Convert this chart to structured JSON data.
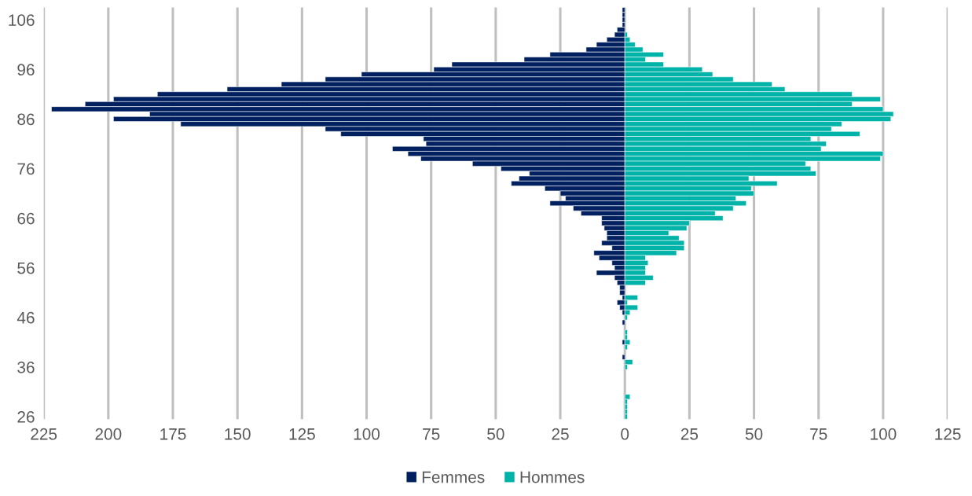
{
  "chart_data": {
    "type": "bar",
    "orientation": "horizontal",
    "categories": [
      null,
      null,
      "106",
      null,
      null,
      null,
      null,
      null,
      null,
      null,
      null,
      null,
      "96",
      null,
      null,
      null,
      null,
      null,
      null,
      null,
      null,
      null,
      "86",
      null,
      null,
      null,
      null,
      null,
      null,
      null,
      null,
      null,
      "76",
      null,
      null,
      null,
      null,
      null,
      null,
      null,
      null,
      null,
      "66",
      null,
      null,
      null,
      null,
      null,
      null,
      null,
      null,
      null,
      "56",
      null,
      null,
      null,
      null,
      null,
      null,
      null,
      null,
      null,
      "46",
      null,
      null,
      null,
      null,
      null,
      null,
      null,
      null,
      null,
      "36",
      null,
      null,
      null,
      null,
      null,
      null,
      null,
      null,
      null,
      "26"
    ],
    "series": [
      {
        "name": "Femmes",
        "color": "#002060",
        "values": [
          -1,
          -1,
          -1,
          -1,
          -3,
          -4,
          -7,
          -11,
          -15,
          -29,
          -39,
          -67,
          -74,
          -102,
          -116,
          -133,
          -154,
          -181,
          -198,
          -209,
          -222,
          -184,
          -198,
          -172,
          -116,
          -110,
          -78,
          -77,
          -90,
          -84,
          -79,
          -59,
          -48,
          -37,
          -41,
          -44,
          -31,
          -25,
          -23,
          -29,
          -20,
          -17,
          -9,
          -9,
          -8,
          -7,
          -7,
          -9,
          -5,
          -12,
          -10,
          -5,
          -4,
          -11,
          -4,
          -3,
          -2,
          -2,
          -1,
          -3,
          -2,
          -1,
          0,
          -1,
          0,
          0,
          0,
          -1,
          0,
          0,
          -1,
          0,
          0,
          0,
          0,
          0,
          0,
          0,
          0,
          0,
          0,
          0,
          0
        ]
      },
      {
        "name": "Hommes",
        "color": "#00b3a8",
        "values": [
          0,
          0,
          0,
          0,
          0,
          1,
          2,
          4,
          7,
          15,
          8,
          15,
          30,
          34,
          42,
          57,
          62,
          88,
          99,
          88,
          100,
          104,
          103,
          84,
          80,
          91,
          72,
          78,
          76,
          100,
          99,
          70,
          72,
          74,
          48,
          59,
          49,
          50,
          43,
          47,
          42,
          35,
          38,
          25,
          24,
          17,
          21,
          23,
          23,
          20,
          8,
          9,
          8,
          8,
          11,
          8,
          0,
          0,
          5,
          1,
          5,
          2,
          1,
          0,
          0,
          1,
          1,
          2,
          1,
          0,
          0,
          3,
          1,
          0,
          0,
          0,
          0,
          0,
          2,
          1,
          1,
          1,
          1
        ]
      }
    ],
    "xlim": [
      -225,
      125
    ],
    "xticks": [
      {
        "value": -225,
        "label": "225"
      },
      {
        "value": -200,
        "label": "200"
      },
      {
        "value": -175,
        "label": "175"
      },
      {
        "value": -150,
        "label": "150"
      },
      {
        "value": -125,
        "label": "125"
      },
      {
        "value": -100,
        "label": "100"
      },
      {
        "value": -75,
        "label": "75"
      },
      {
        "value": -50,
        "label": "50"
      },
      {
        "value": -25,
        "label": "25"
      },
      0,
      25,
      50,
      75,
      100,
      125
    ],
    "grid": "x",
    "legend": "bottom",
    "stacked": true
  }
}
